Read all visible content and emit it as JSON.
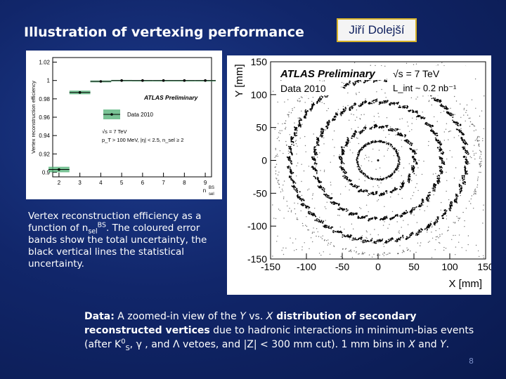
{
  "slide": {
    "title": "Illustration of vertexing performance",
    "author": "Jiří Dolejší",
    "page_number": "8",
    "caption_left": {
      "part1": "Vertex reconstruction efficiency as a function of n",
      "sub": "sel",
      "sup": "BS",
      "part2": ". The coloured error bands show the total uncertainty, the black vertical lines the statistical uncertainty."
    },
    "caption_bottom": {
      "bold1": "Data:",
      "text1": " A zoomed-in view of the ",
      "y": "Y",
      "text2": " vs. ",
      "x": "X",
      "bold2": " distribution of secondary reconstructed vertices",
      "text3": " due to hadronic interactions in minimum-bias events (after K",
      "k_sup": "0",
      "k_sub": "S",
      "text4": ", γ , and Λ  vetoes, and |Z| < 300 mm cut). 1 mm bins in ",
      "x2": "X",
      "text5": " and ",
      "y2": "Y",
      "text6": "."
    }
  },
  "chart_data": [
    {
      "type": "scatter",
      "ylabel": "Vertex reconstruction efficiency",
      "xlabel_main": "n",
      "xlabel_sub": "sel",
      "xlabel_sup": "BS",
      "x_ticks": [
        2,
        3,
        4,
        5,
        6,
        7,
        8,
        9
      ],
      "y_ticks": [
        0.9,
        0.92,
        0.94,
        0.96,
        0.98,
        1,
        1.02
      ],
      "y_tick_labels": [
        "0.9",
        "0.92",
        "0.94",
        "0.96",
        "0.98",
        "1",
        "1.02"
      ],
      "xlim": [
        1.7,
        9.3
      ],
      "ylim": [
        0.895,
        1.025
      ],
      "series": [
        {
          "name": "Data 2010",
          "x": [
            2,
            3,
            4,
            5,
            6,
            7,
            8,
            9
          ],
          "y": [
            0.903,
            0.987,
            0.999,
            1.0,
            1.0,
            1.0,
            1.0,
            1.0
          ],
          "band_halfwidth": [
            0.003,
            0.002,
            0.001,
            0.0006,
            0.0005,
            0.0005,
            0.0005,
            0.0005
          ]
        }
      ],
      "annotation": "ATLAS Preliminary",
      "conditions": [
        "√s = 7 TeV",
        "p_T > 100 MeV, |η| < 2.5, n_sel ≥ 2"
      ],
      "legend_position": "center-right",
      "color": "#2e8b57"
    },
    {
      "type": "scatter",
      "title": "ATLAS Preliminary",
      "subtitle_left": "Data 2010",
      "subtitle_right1": "√s = 7 TeV",
      "subtitle_right2": "L_int ~ 0.2 nb⁻¹",
      "xlabel": "X [mm]",
      "ylabel": "Y [mm]",
      "x_ticks": [
        -150,
        -100,
        -50,
        0,
        50,
        100,
        150
      ],
      "y_ticks": [
        -150,
        -100,
        -50,
        0,
        50,
        100,
        150
      ],
      "xlim": [
        -150,
        150
      ],
      "ylim": [
        -150,
        150
      ],
      "structures": {
        "beam_pipe_radius_mm": 29,
        "pixel_layer_radii_mm": [
          51,
          89,
          123
        ],
        "pixel_layer_staves": [
          22,
          38,
          52
        ],
        "support_radius_mm": 143
      }
    }
  ]
}
